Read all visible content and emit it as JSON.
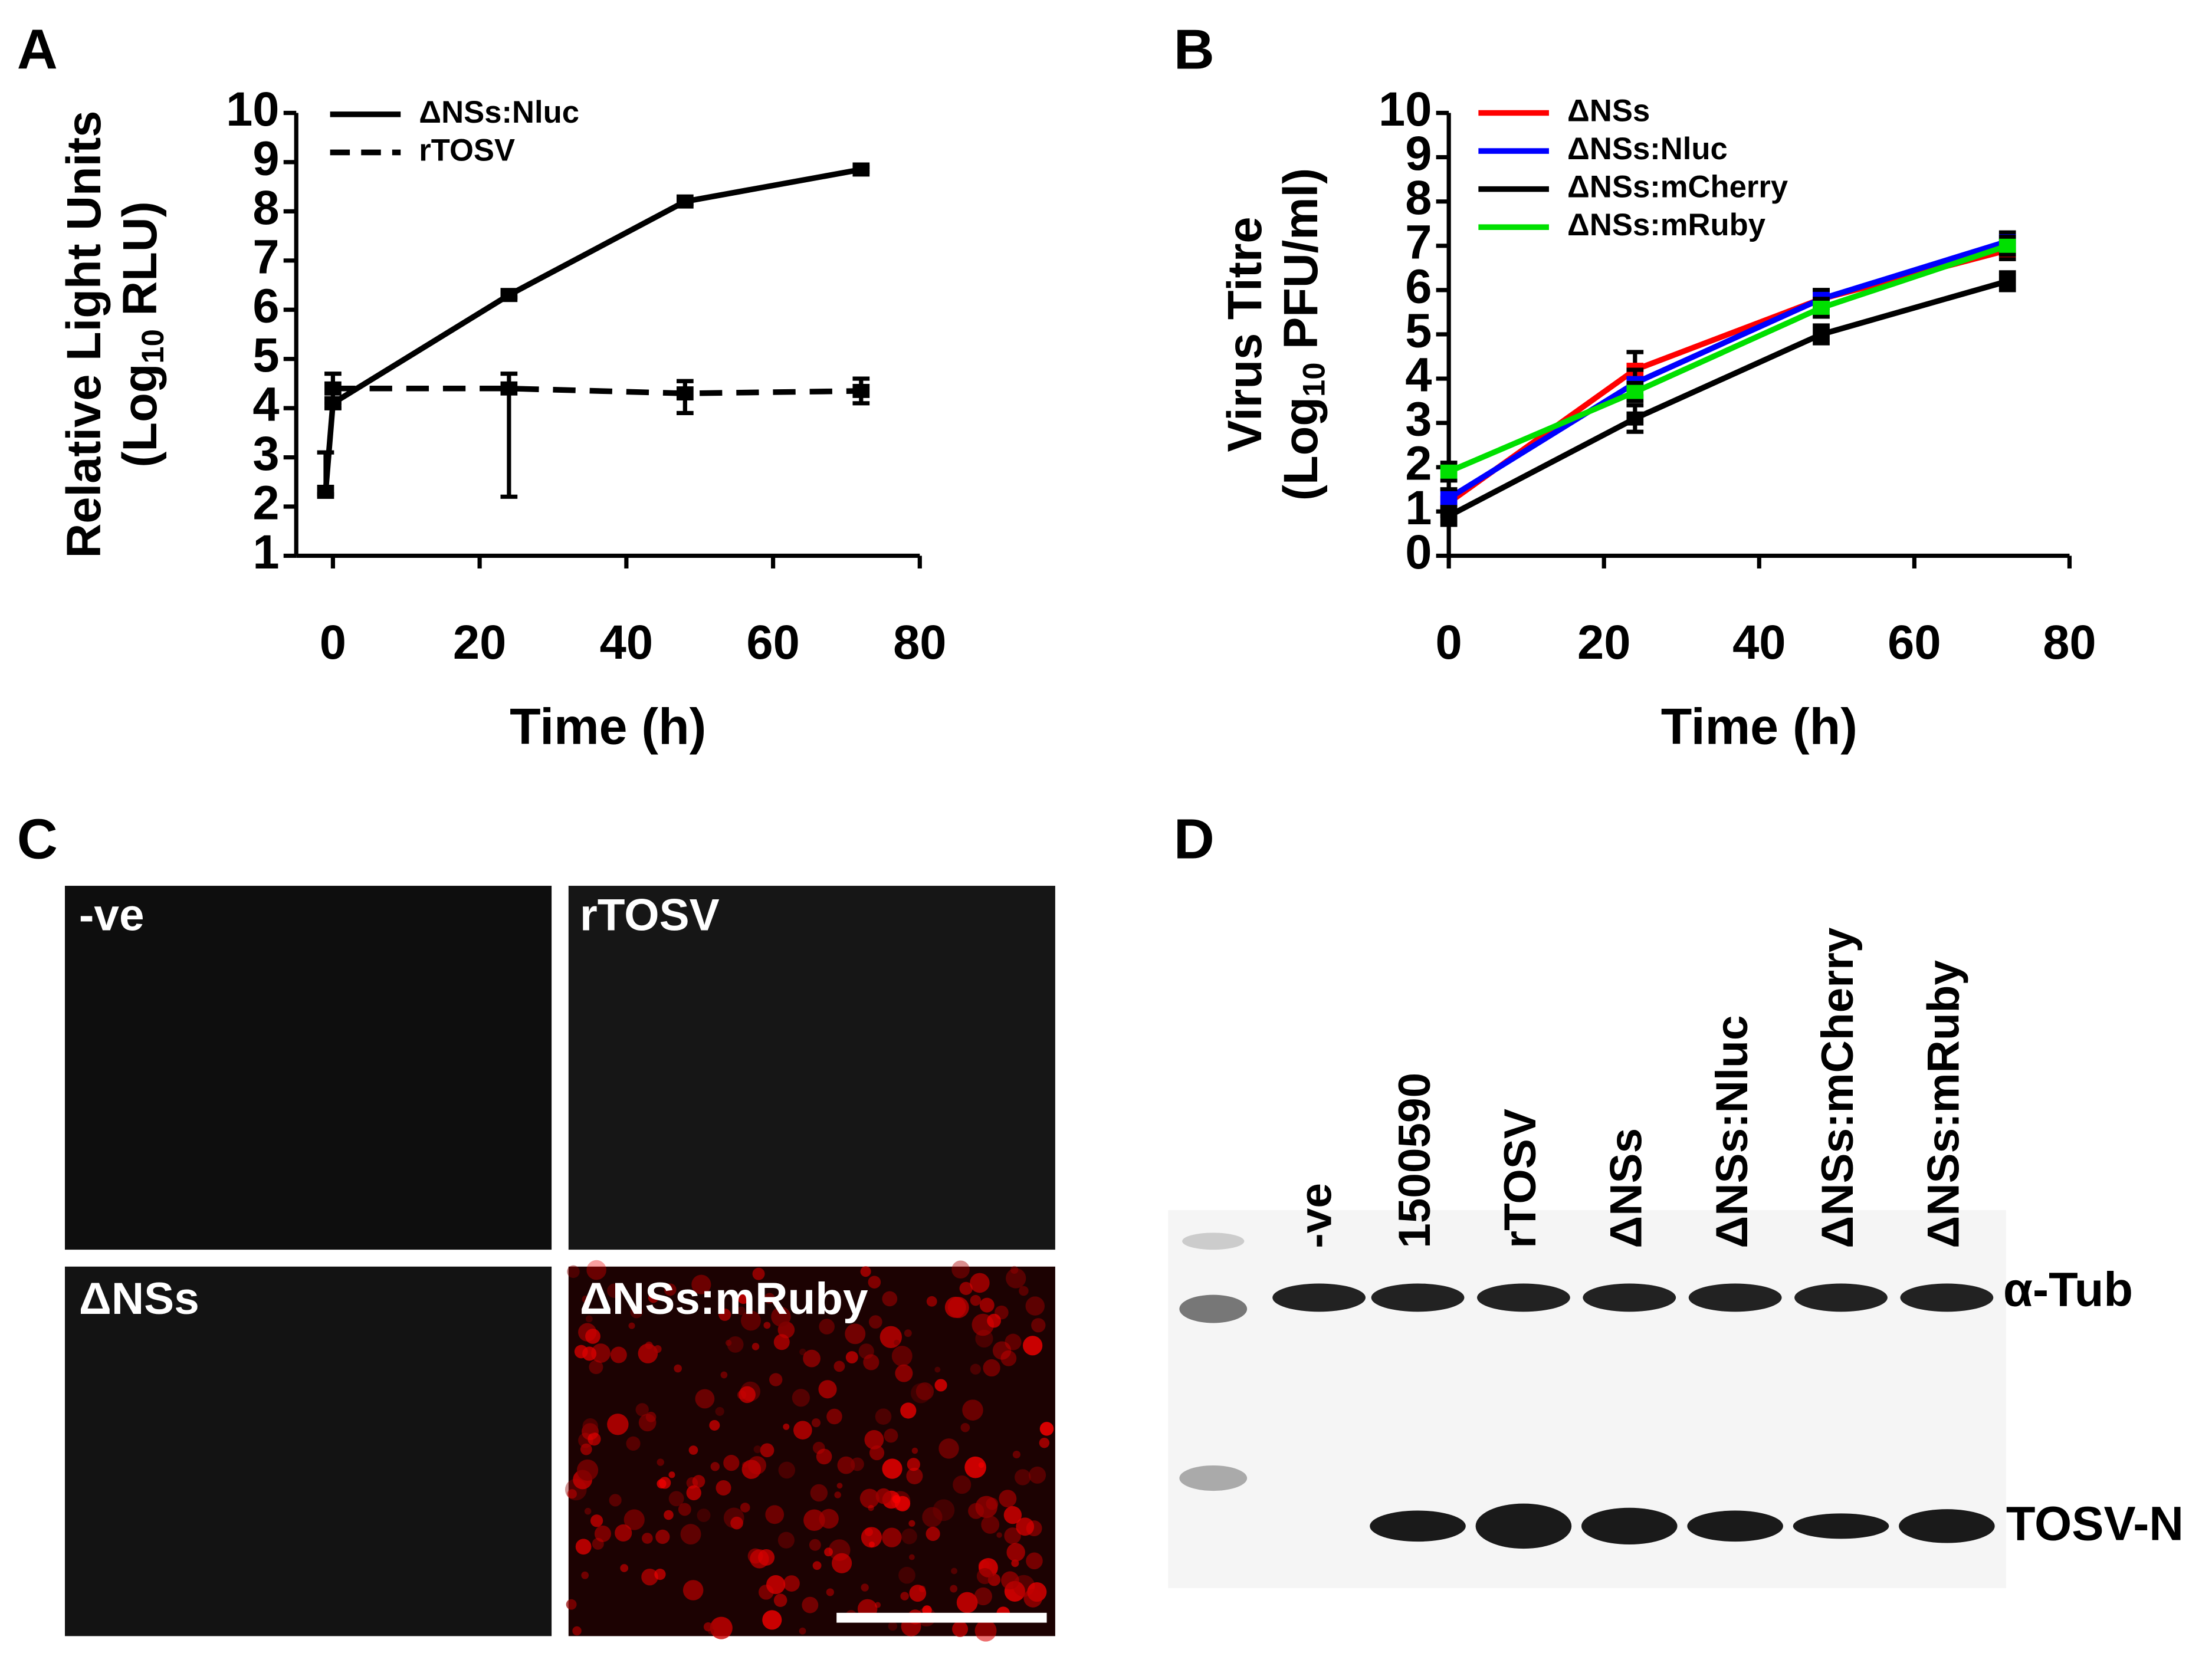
{
  "panels": {
    "labels": [
      "A",
      "B",
      "C",
      "D"
    ]
  },
  "chart_data": [
    {
      "type": "line",
      "y_label": "Relative Light Units",
      "y_label_2": {
        "prefix": "(Log",
        "subscript": "10",
        "suffix": " RLU)"
      },
      "x_label": "Time (h)",
      "xlim": [
        -5,
        80
      ],
      "xticks": [
        0,
        20,
        40,
        60,
        80
      ],
      "ylim": [
        1,
        10
      ],
      "yticks": [
        1,
        2,
        3,
        4,
        5,
        6,
        7,
        8,
        9,
        10
      ],
      "legend": "top-left",
      "series": [
        {
          "name": "ΔNSs:Nluc",
          "color": "#000000",
          "dashed": false,
          "x": [
            -1,
            0,
            24,
            48,
            72
          ],
          "values": [
            2.3,
            4.1,
            6.3,
            8.2,
            8.85
          ],
          "error_minus": [
            0.05,
            0.1,
            0.05,
            0.05,
            0.05
          ],
          "error_plus": [
            0.8,
            0.1,
            0.05,
            0.05,
            0.05
          ]
        },
        {
          "name": "rTOSV",
          "color": "#000000",
          "dashed": true,
          "x": [
            0,
            24,
            48,
            72
          ],
          "values": [
            4.4,
            4.4,
            4.3,
            4.35
          ],
          "error_minus": [
            0.3,
            2.2,
            0.4,
            0.25
          ],
          "error_plus": [
            0.3,
            0.3,
            0.25,
            0.25
          ]
        }
      ]
    },
    {
      "type": "line",
      "y_label": "Virus Titre",
      "y_label_2": {
        "prefix": "(Log",
        "subscript": "10",
        "suffix": " PFU/ml)"
      },
      "x_label": "Time (h)",
      "xlim": [
        0,
        80
      ],
      "xticks": [
        0,
        20,
        40,
        60,
        80
      ],
      "ylim": [
        0,
        10
      ],
      "yticks": [
        0,
        1,
        2,
        3,
        4,
        5,
        6,
        7,
        8,
        9,
        10
      ],
      "legend": "top-left",
      "series": [
        {
          "name": "ΔNSs",
          "color": "#ff0000",
          "dashed": false,
          "x": [
            0,
            24,
            48,
            72
          ],
          "values": [
            1.2,
            4.2,
            5.8,
            6.9
          ],
          "error_minus": [
            0.3,
            0.4,
            0.2,
            0.2
          ],
          "error_plus": [
            0.3,
            0.4,
            0.2,
            0.2
          ]
        },
        {
          "name": "ΔNSs:Nluc",
          "color": "#0000ff",
          "dashed": false,
          "x": [
            0,
            24,
            48,
            72
          ],
          "values": [
            1.3,
            3.9,
            5.8,
            7.1
          ],
          "error_minus": [
            0.2,
            0.3,
            0.2,
            0.2
          ],
          "error_plus": [
            0.2,
            0.3,
            0.2,
            0.2
          ]
        },
        {
          "name": "ΔNSs:mCherry",
          "color": "#000000",
          "dashed": false,
          "x": [
            0,
            24,
            48,
            72
          ],
          "values": [
            0.9,
            3.1,
            5.0,
            6.2
          ],
          "error_minus": [
            0.2,
            0.3,
            0.2,
            0.2
          ],
          "error_plus": [
            0.2,
            0.3,
            0.2,
            0.2
          ]
        },
        {
          "name": "ΔNSs:mRuby",
          "color": "#00e000",
          "dashed": false,
          "x": [
            0,
            24,
            48,
            72
          ],
          "values": [
            1.9,
            3.7,
            5.6,
            7.0
          ],
          "error_minus": [
            0.2,
            0.2,
            0.2,
            0.2
          ],
          "error_plus": [
            0.2,
            0.2,
            0.2,
            0.2
          ]
        }
      ]
    }
  ],
  "microscopy": {
    "panels": [
      "-ve",
      "rTOSV",
      "ΔNSs",
      "ΔNSs:mRuby"
    ]
  },
  "blot": {
    "lanes": [
      "-ve",
      "1500590",
      "rTOSV",
      "ΔNSs",
      "ΔNSs:Nluc",
      "ΔNSs:mCherry",
      "ΔNSs:mRuby"
    ],
    "bands": [
      "α-Tub",
      "TOSV-N"
    ]
  }
}
